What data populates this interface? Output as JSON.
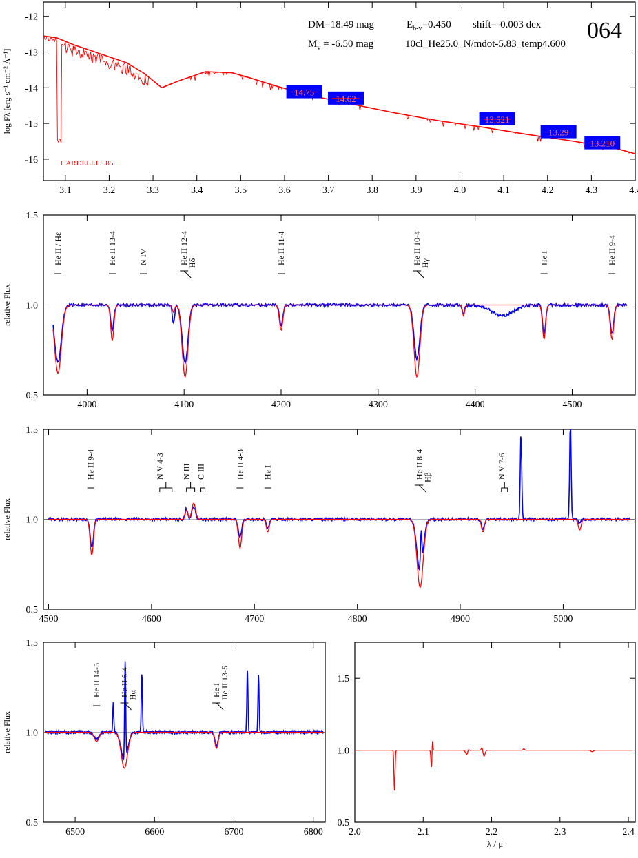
{
  "header": {
    "id": "064",
    "dm": "DM=18.49 mag",
    "ebv_prefix": "E",
    "ebv_sub": "b-v",
    "ebv_value": "=0.450",
    "shift": "shift=-0.003 dex",
    "mv_prefix": "M",
    "mv_sub": "v",
    "mv_value": " =  -6.50 mag",
    "model": "10cl_He25.0_N/mdot-5.83_temp4.600",
    "reddening": "CARDELLI 5.85"
  },
  "chart_data": [
    {
      "id": "sed",
      "type": "line",
      "ylabel": "log Fλ [erg s⁻¹ cm⁻² Å⁻¹]",
      "xlim": [
        3.05,
        4.4
      ],
      "ylim": [
        -16.6,
        -11.6
      ],
      "xticks": [
        3.1,
        3.2,
        3.3,
        3.4,
        3.5,
        3.6,
        3.7,
        3.8,
        3.9,
        4.0,
        4.1,
        4.2,
        4.3,
        4.4
      ],
      "xtick_labels": [
        "3.1",
        "3.2",
        "3.3",
        "3.4",
        "3.5",
        "3.6",
        "3.7",
        "3.8",
        "3.9",
        "4.0",
        "4.1",
        "4.2",
        "4.3",
        "4.4"
      ],
      "yticks": [
        -12,
        -13,
        -14,
        -15,
        -16
      ],
      "ytick_labels": [
        "-12",
        "-13",
        "-14",
        "-15",
        "-16"
      ],
      "model_colors": {
        "model": "#ff0000",
        "observation": "#0000ff"
      },
      "model_line": {
        "x": [
          3.05,
          3.08,
          3.12,
          3.18,
          3.24,
          3.28,
          3.32,
          3.36,
          3.42,
          3.48,
          3.52,
          3.58,
          3.66,
          3.75,
          3.85,
          3.95,
          4.05,
          4.15,
          4.25,
          4.35,
          4.4
        ],
        "y": [
          -12.55,
          -12.6,
          -12.8,
          -13.05,
          -13.3,
          -13.6,
          -14.0,
          -13.8,
          -13.55,
          -13.58,
          -13.72,
          -13.95,
          -14.22,
          -14.45,
          -14.7,
          -14.92,
          -15.1,
          -15.3,
          -15.48,
          -15.68,
          -15.85
        ]
      },
      "photometry": [
        {
          "x": 3.645,
          "y": -14.12,
          "label": "14.75"
        },
        {
          "x": 3.74,
          "y": -14.3,
          "label": "14.62"
        },
        {
          "x": 4.085,
          "y": -14.88,
          "label": "13.521"
        },
        {
          "x": 4.225,
          "y": -15.24,
          "label": "13.29"
        },
        {
          "x": 4.325,
          "y": -15.55,
          "label": "13.210"
        }
      ]
    },
    {
      "id": "blue",
      "type": "line",
      "ylabel": "relative Flux",
      "xlim": [
        3955,
        4565
      ],
      "ylim": [
        0.5,
        1.5
      ],
      "xticks": [
        4000,
        4100,
        4200,
        4300,
        4400,
        4500
      ],
      "xtick_labels": [
        "4000",
        "4100",
        "4200",
        "4300",
        "4400",
        "4500"
      ],
      "yticks": [
        0.5,
        1.0,
        1.5
      ],
      "ytick_labels": [
        "0.5",
        "1.0",
        "1.5"
      ],
      "lines": [
        {
          "x": 3970,
          "label": "He II / Hε",
          "kind": "single"
        },
        {
          "x": 4026,
          "label": "He II 13-4",
          "kind": "single"
        },
        {
          "x": 4058,
          "label": "N IV",
          "kind": "single"
        },
        {
          "x": 4100,
          "label": "He II 12-4",
          "label2": "Hδ",
          "kind": "pair"
        },
        {
          "x": 4200,
          "label": "He II 11-4",
          "kind": "single"
        },
        {
          "x": 4340,
          "label": "He II 10-4",
          "label2": "Hγ",
          "kind": "pair"
        },
        {
          "x": 4471,
          "label": "He I",
          "kind": "single"
        },
        {
          "x": 4541,
          "label": "He II 9-4",
          "kind": "single"
        }
      ],
      "features": [
        {
          "x": 3970,
          "model": 0.38,
          "obs": 0.32,
          "w": 3.5
        },
        {
          "x": 4026,
          "model": 0.2,
          "obs": 0.14,
          "w": 1.6
        },
        {
          "x": 4101,
          "model": 0.4,
          "obs": 0.32,
          "w": 3
        },
        {
          "x": 4200,
          "model": 0.14,
          "obs": 0.11,
          "w": 1.8
        },
        {
          "x": 4340,
          "model": 0.4,
          "obs": 0.3,
          "w": 3
        },
        {
          "x": 4388,
          "model": 0.06,
          "obs": 0.05,
          "w": 1.2
        },
        {
          "x": 4428,
          "model": 0.0,
          "obs": 0.06,
          "w": 11
        },
        {
          "x": 4471,
          "model": 0.19,
          "obs": 0.16,
          "w": 1.6
        },
        {
          "x": 4541,
          "model": 0.19,
          "obs": 0.16,
          "w": 1.8
        },
        {
          "x": 4089,
          "model": 0.04,
          "obs": 0.1,
          "w": 1.2
        }
      ]
    },
    {
      "id": "green",
      "type": "line",
      "ylabel": "relative Flux",
      "xlim": [
        4495,
        5070
      ],
      "ylim": [
        0.5,
        1.5
      ],
      "xticks": [
        4500,
        4600,
        4700,
        4800,
        4900,
        5000
      ],
      "xtick_labels": [
        "4500",
        "4600",
        "4700",
        "4800",
        "4900",
        "5000"
      ],
      "yticks": [
        0.5,
        1.0,
        1.5
      ],
      "ytick_labels": [
        "0.5",
        "1.0",
        "1.5"
      ],
      "lines": [
        {
          "x": 4541,
          "label": "He II 9-4",
          "kind": "single"
        },
        {
          "x": 4608,
          "label": "N V 4-3",
          "kind": "bracket",
          "x2": 4620
        },
        {
          "x": 4634,
          "label": "N III",
          "kind": "bracket",
          "x2": 4642
        },
        {
          "x": 4648,
          "label": "C III",
          "kind": "bracket",
          "x2": 4652
        },
        {
          "x": 4686,
          "label": "He II 4-3",
          "kind": "single"
        },
        {
          "x": 4713,
          "label": "He I",
          "kind": "single"
        },
        {
          "x": 4860,
          "label": "He II 8-4",
          "label2": "Hβ",
          "kind": "pair"
        },
        {
          "x": 4940,
          "label": "N V 7-6",
          "kind": "bracket",
          "x2": 4946
        }
      ],
      "features": [
        {
          "x": 4542,
          "model": 0.2,
          "obs": 0.16,
          "w": 1.6
        },
        {
          "x": 4634,
          "model": -0.05,
          "obs": -0.06,
          "w": 1.2
        },
        {
          "x": 4641,
          "model": -0.09,
          "obs": -0.07,
          "w": 1.8
        },
        {
          "x": 4686,
          "model": 0.16,
          "obs": 0.1,
          "w": 1.6
        },
        {
          "x": 4713,
          "model": 0.07,
          "obs": 0.05,
          "w": 1.4
        },
        {
          "x": 4861,
          "model": 0.38,
          "obs": 0.3,
          "w": 3
        },
        {
          "x": 4922,
          "model": 0.07,
          "obs": 0.06,
          "w": 1.4
        },
        {
          "x": 5016,
          "model": 0.06,
          "obs": 0.02,
          "w": 1.4
        }
      ],
      "emission": [
        {
          "x": 4959,
          "h": 0.5
        },
        {
          "x": 5007,
          "h": 0.55
        },
        {
          "x": 4862,
          "h": 0.22
        }
      ]
    },
    {
      "id": "red",
      "type": "line",
      "ylabel": "relative Flux",
      "xlim": [
        6460,
        6815
      ],
      "ylim": [
        0.5,
        1.5
      ],
      "xticks": [
        6500,
        6600,
        6700,
        6800
      ],
      "xtick_labels": [
        "6500",
        "6600",
        "6700",
        "6800"
      ],
      "yticks": [
        0.5,
        1.0,
        1.5
      ],
      "ytick_labels": [
        "0.5",
        "1.0",
        "1.5"
      ],
      "lines": [
        {
          "x": 6527,
          "label": "He II 14-5",
          "kind": "single"
        },
        {
          "x": 6562,
          "label": "He II 6-4",
          "label2": "Hα",
          "kind": "pair"
        },
        {
          "x": 6678,
          "label": "He I",
          "label2": "He II 13-5",
          "kind": "pair"
        }
      ],
      "features": [
        {
          "x": 6527,
          "model": 0.05,
          "obs": 0.04,
          "w": 3
        },
        {
          "x": 6562,
          "model": 0.2,
          "obs": 0.16,
          "w": 4
        },
        {
          "x": 6678,
          "model": 0.09,
          "obs": 0.08,
          "w": 2
        }
      ],
      "emission": [
        {
          "x": 6548,
          "h": 0.16
        },
        {
          "x": 6563,
          "h": 0.55
        },
        {
          "x": 6584,
          "h": 0.32
        },
        {
          "x": 6717,
          "h": 0.35
        },
        {
          "x": 6731,
          "h": 0.32
        }
      ]
    },
    {
      "id": "ir",
      "type": "line",
      "xlabel": "λ / μ",
      "xlim": [
        2.0,
        2.41
      ],
      "ylim": [
        0.5,
        1.75
      ],
      "xticks": [
        2.0,
        2.1,
        2.2,
        2.3,
        2.4
      ],
      "xtick_labels": [
        "2.0",
        "2.1",
        "2.2",
        "2.3",
        "2.4"
      ],
      "yticks": [
        0.5,
        1.0,
        1.5
      ],
      "ytick_labels": [
        "0.5",
        "1.0",
        "1.5"
      ],
      "features": [
        {
          "x": 2.058,
          "model": 0.28,
          "w": 0.0008
        },
        {
          "x": 2.112,
          "model": 0.12,
          "w": 0.0008
        },
        {
          "x": 2.1135,
          "model": -0.08,
          "w": 0.0006
        },
        {
          "x": 2.164,
          "model": 0.03,
          "w": 0.002
        },
        {
          "x": 2.166,
          "model": -0.02,
          "w": 0.001
        },
        {
          "x": 2.189,
          "model": 0.04,
          "w": 0.0015
        },
        {
          "x": 2.186,
          "model": -0.02,
          "w": 0.001
        },
        {
          "x": 2.247,
          "model": -0.01,
          "w": 0.001
        },
        {
          "x": 2.347,
          "model": 0.01,
          "w": 0.002
        }
      ]
    }
  ]
}
